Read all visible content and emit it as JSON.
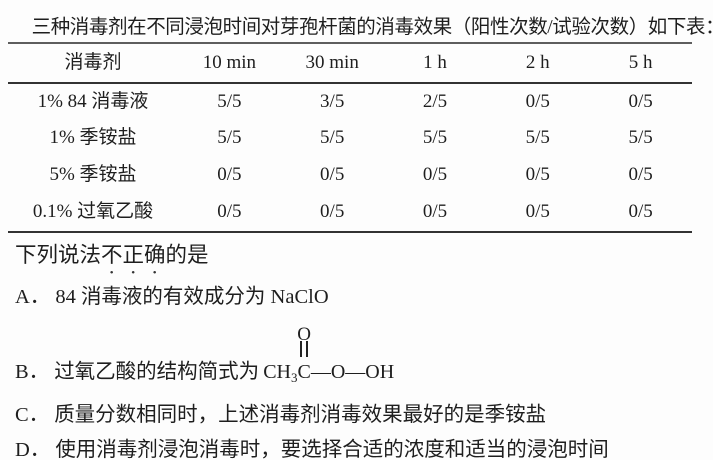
{
  "header": {
    "question_number_fragment": "）",
    "title": "三种消毒剂在不同浸泡时间对芽孢杆菌的消毒效果（阳性次数/试验次数）如下表："
  },
  "table": {
    "headers": [
      "消毒剂",
      "10 min",
      "30 min",
      "1 h",
      "2 h",
      "5 h"
    ],
    "rows": [
      {
        "label": "1% 84 消毒液",
        "values": [
          "5/5",
          "3/5",
          "2/5",
          "0/5",
          "0/5"
        ]
      },
      {
        "label": "1% 季铵盐",
        "values": [
          "5/5",
          "5/5",
          "5/5",
          "5/5",
          "5/5"
        ]
      },
      {
        "label": "5% 季铵盐",
        "values": [
          "0/5",
          "0/5",
          "0/5",
          "0/5",
          "0/5"
        ]
      },
      {
        "label": "0.1% 过氧乙酸",
        "values": [
          "0/5",
          "0/5",
          "0/5",
          "0/5",
          "0/5"
        ]
      }
    ]
  },
  "question": {
    "prefix": "下列说法",
    "emphasis": "不正确",
    "suffix": "的是"
  },
  "options": {
    "a": {
      "label": "A．",
      "text": "84 消毒液的有效成分为 NaClO"
    },
    "b": {
      "label": "B．",
      "text": "过氧乙酸的结构简式为",
      "formula": {
        "prefix": "CH",
        "subscript": "3",
        "carbon": "C",
        "oxygen": "O",
        "suffix": "—O—OH"
      }
    },
    "c": {
      "label": "C．",
      "text": "质量分数相同时，上述消毒剂消毒效果最好的是季铵盐"
    },
    "d": {
      "label": "D．",
      "text": "使用消毒剂浸泡消毒时，要选择合适的浓度和适当的浸泡时间"
    }
  },
  "colors": {
    "background": "#fdfdfd",
    "text": "#1e1e1e",
    "rule_top": "#5e5e5e",
    "rule": "#333333"
  }
}
